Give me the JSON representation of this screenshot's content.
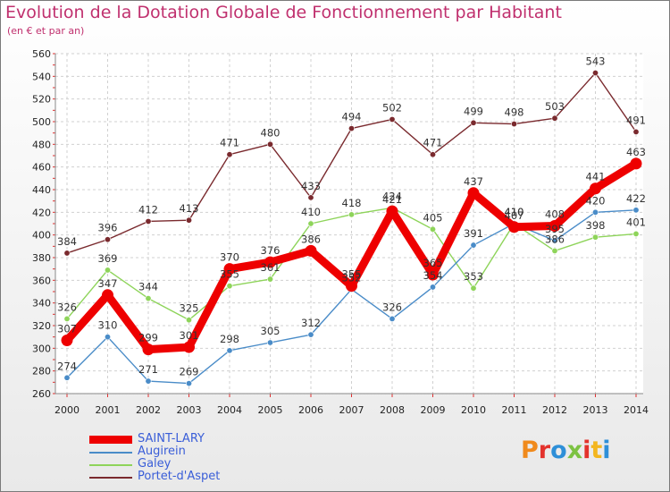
{
  "header": {
    "title": "Evolution de la Dotation Globale de Fonctionnement par Habitant",
    "subtitle": "(en € et par an)"
  },
  "logo": {
    "text": "Proxiti",
    "colors": [
      "#f08a1c",
      "#e3322c",
      "#2e8fd8",
      "#7cc242",
      "#e3322c",
      "#f3b61f",
      "#2e8fd8"
    ]
  },
  "chart_data": {
    "type": "line",
    "title": "Evolution de la Dotation Globale de Fonctionnement par Habitant",
    "subtitle": "(en € et par an)",
    "x": [
      "2000",
      "2001",
      "2002",
      "2003",
      "2004",
      "2005",
      "2006",
      "2007",
      "2008",
      "2009",
      "2010",
      "2011",
      "2012",
      "2013",
      "2014"
    ],
    "ylim": [
      260,
      560
    ],
    "yticks": [
      260,
      280,
      300,
      320,
      340,
      360,
      380,
      400,
      420,
      440,
      460,
      480,
      500,
      520,
      540,
      560
    ],
    "grid": true,
    "legend_position": "bottom-left",
    "series": [
      {
        "name": "Portet-d'Aspet",
        "color": "#7a2a2e",
        "values": [
          384,
          396,
          412,
          413,
          471,
          480,
          433,
          494,
          502,
          471,
          499,
          498,
          503,
          543,
          491
        ]
      },
      {
        "name": "Galey",
        "color": "#8ed45a",
        "values": [
          326,
          369,
          344,
          325,
          355,
          361,
          410,
          418,
          424,
          405,
          353,
          410,
          386,
          398,
          401
        ]
      },
      {
        "name": "Augirein",
        "color": "#4a8cc8",
        "values": [
          274,
          310,
          271,
          269,
          298,
          305,
          312,
          352,
          326,
          354,
          391,
          410,
          395,
          420,
          422
        ]
      },
      {
        "name": "SAINT-LARY",
        "color": "#ee0000",
        "values": [
          307,
          347,
          299,
          301,
          370,
          376,
          386,
          355,
          421,
          365,
          437,
          407,
          408,
          441,
          463
        ]
      }
    ],
    "legend_order": [
      "SAINT-LARY",
      "Augirein",
      "Galey",
      "Portet-d'Aspet"
    ]
  }
}
